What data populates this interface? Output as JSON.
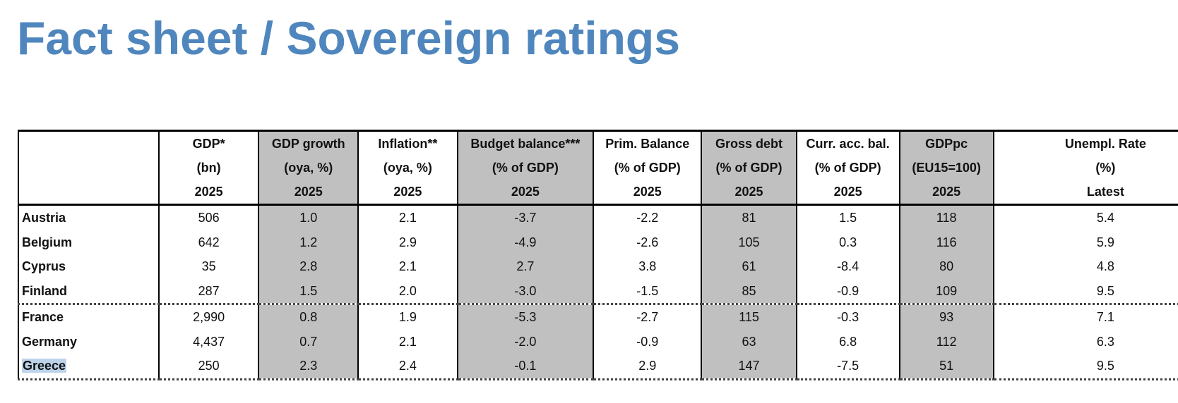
{
  "title": "Fact sheet / Sovereign ratings",
  "header_rows": [
    [
      "",
      "GDP*",
      "GDP growth",
      "Inflation**",
      "Budget balance***",
      "Prim. Balance",
      "Gross debt",
      "Curr. acc. bal.",
      "GDPpc",
      "Unempl. Rate"
    ],
    [
      "",
      "(bn)",
      "(oya, %)",
      "(oya, %)",
      "(% of GDP)",
      "(% of GDP)",
      "(% of GDP)",
      "(% of GDP)",
      "(EU15=100)",
      "(%)"
    ],
    [
      "",
      "2025",
      "2025",
      "2025",
      "2025",
      "2025",
      "2025",
      "2025",
      "2025",
      "Latest"
    ]
  ],
  "rows": [
    {
      "country": "Austria",
      "values": [
        "506",
        "1.0",
        "2.1",
        "-3.7",
        "-2.2",
        "81",
        "1.5",
        "118",
        "5.4"
      ]
    },
    {
      "country": "Belgium",
      "values": [
        "642",
        "1.2",
        "2.9",
        "-4.9",
        "-2.6",
        "105",
        "0.3",
        "116",
        "5.9"
      ]
    },
    {
      "country": "Cyprus",
      "values": [
        "35",
        "2.8",
        "2.1",
        "2.7",
        "3.8",
        "61",
        "-8.4",
        "80",
        "4.8"
      ]
    },
    {
      "country": "Finland",
      "values": [
        "287",
        "1.5",
        "2.0",
        "-3.0",
        "-1.5",
        "85",
        "-0.9",
        "109",
        "9.5"
      ]
    },
    {
      "country": "France",
      "values": [
        "2,990",
        "0.8",
        "1.9",
        "-5.3",
        "-2.7",
        "115",
        "-0.3",
        "93",
        "7.1"
      ]
    },
    {
      "country": "Germany",
      "values": [
        "4,437",
        "0.7",
        "2.1",
        "-2.0",
        "-0.9",
        "63",
        "6.8",
        "112",
        "6.3"
      ]
    },
    {
      "country": "Greece",
      "values": [
        "250",
        "2.3",
        "2.4",
        "-0.1",
        "2.9",
        "147",
        "-7.5",
        "51",
        "9.5"
      ],
      "selected": true
    }
  ],
  "colors": {
    "title": "#4f86bd",
    "shaded_column": "#c0c0c0",
    "selection_highlight": "#bcd3ea"
  }
}
